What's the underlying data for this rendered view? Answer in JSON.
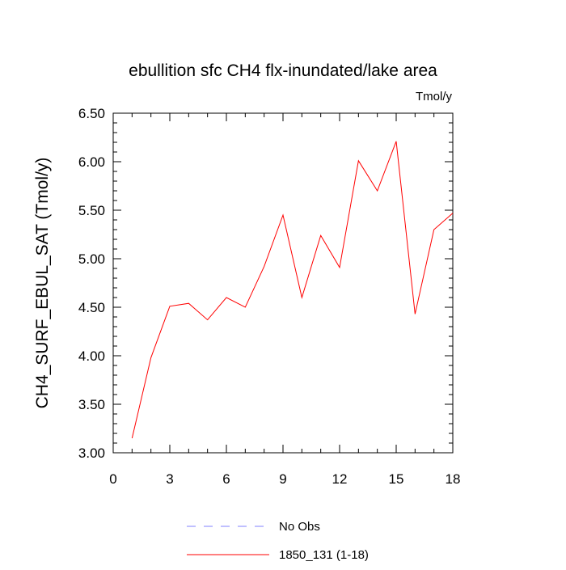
{
  "chart_data": {
    "type": "line",
    "title": "ebullition sfc CH4 flx-inundated/lake area",
    "units_label": "Tmol/y",
    "ylabel": "CH4_SURF_EBUL_SAT  (Tmol/y)",
    "xlabel": "",
    "xlim": [
      0,
      18
    ],
    "ylim": [
      3.0,
      6.5
    ],
    "x_ticks": [
      0,
      3,
      6,
      9,
      12,
      15,
      18
    ],
    "x_tick_labels": [
      "0",
      "3",
      "6",
      "9",
      "12",
      "15",
      "18"
    ],
    "y_ticks": [
      3.0,
      3.5,
      4.0,
      4.5,
      5.0,
      5.5,
      6.0,
      6.5
    ],
    "y_tick_labels": [
      "3.00",
      "3.50",
      "4.00",
      "4.50",
      "5.00",
      "5.50",
      "6.00",
      "6.50"
    ],
    "grid": false,
    "legend_position": "bottom-center",
    "series": [
      {
        "name": "No Obs",
        "color": "#8080ff",
        "style": "dashed",
        "x": [],
        "values": []
      },
      {
        "name": "1850_131 (1-18)",
        "color": "#ff0000",
        "style": "solid",
        "x": [
          1,
          2,
          3,
          4,
          5,
          6,
          7,
          8,
          9,
          10,
          11,
          12,
          13,
          14,
          15,
          16,
          17,
          18
        ],
        "values": [
          3.15,
          3.98,
          4.51,
          4.54,
          4.37,
          4.6,
          4.5,
          4.92,
          5.45,
          4.6,
          5.24,
          4.91,
          6.01,
          5.7,
          6.21,
          4.43,
          5.3,
          5.47
        ]
      }
    ]
  }
}
